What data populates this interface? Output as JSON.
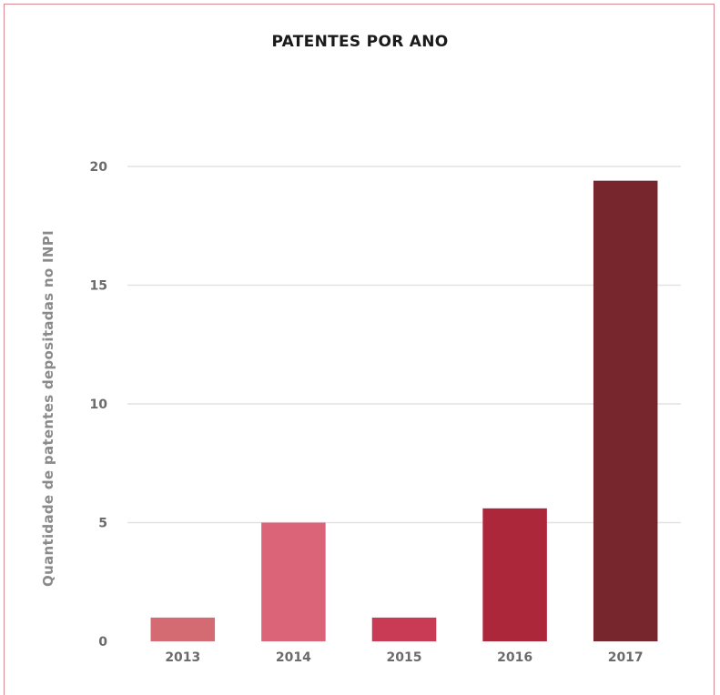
{
  "chart_data": {
    "type": "bar",
    "title": "PATENTES POR ANO",
    "xlabel": "",
    "ylabel": "Quantidade de patentes depositadas no INPI",
    "categories": [
      "2013",
      "2014",
      "2015",
      "2016",
      "2017"
    ],
    "values": [
      1,
      5,
      1,
      5.6,
      19.4
    ],
    "colors": [
      "#d46a72",
      "#dc6478",
      "#c93a55",
      "#ad273b",
      "#77262d"
    ],
    "ylim": [
      0,
      20
    ],
    "yticks": [
      0,
      5,
      10,
      15,
      20
    ],
    "grid": true,
    "gridColor": "#e2e2e2"
  }
}
